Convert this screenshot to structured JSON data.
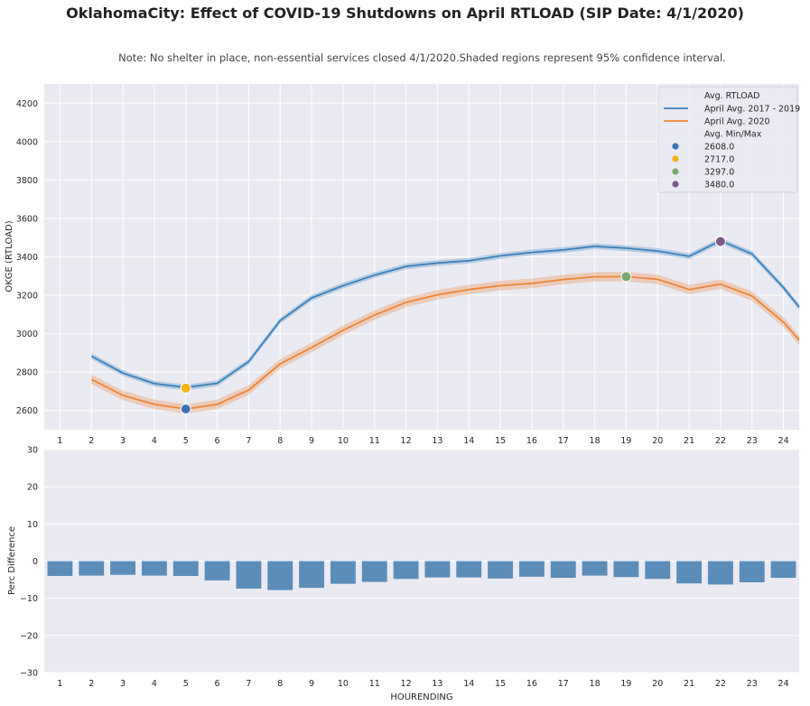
{
  "title": "OklahomaCity: Effect of COVID-19 Shutdowns on April RTLOAD (SIP Date: 4/1/2020)",
  "subtitle": "Note: No shelter in place, non-essential services closed 4/1/2020.Shaded regions represent 95% confidence interval.",
  "chart_data": [
    {
      "type": "line",
      "ylabel": "OKGE (RTLOAD)",
      "xlabel": "",
      "xlim": [
        0.5,
        24.5
      ],
      "ylim": [
        2500,
        4300
      ],
      "yticks": [
        2600,
        2800,
        3000,
        3200,
        3400,
        3600,
        3800,
        4000,
        4200
      ],
      "xticks": [
        1,
        2,
        3,
        4,
        5,
        6,
        7,
        8,
        9,
        10,
        11,
        12,
        13,
        14,
        15,
        16,
        17,
        18,
        19,
        20,
        21,
        22,
        23,
        24
      ],
      "series": [
        {
          "name": "April Avg. 2017 - 2019",
          "color": "#3b83bd",
          "x": [
            2,
            3,
            4,
            5,
            6,
            7,
            8,
            9,
            10,
            11,
            12,
            13,
            14,
            15,
            16,
            17,
            18,
            19,
            20,
            21,
            22,
            23,
            24,
            24.5
          ],
          "values": [
            2883,
            2795,
            2740,
            2720,
            2742,
            2855,
            3068,
            3186,
            3250,
            3305,
            3350,
            3368,
            3380,
            3405,
            3423,
            3436,
            3455,
            3445,
            3430,
            3403,
            3484,
            3415,
            3240,
            3138
          ],
          "ci": 15
        },
        {
          "name": "April Avg. 2020",
          "color": "#ee8536",
          "x": [
            2,
            3,
            4,
            5,
            6,
            7,
            8,
            9,
            10,
            11,
            12,
            13,
            14,
            15,
            16,
            17,
            18,
            19,
            20,
            21,
            22,
            23,
            24,
            24.5
          ],
          "values": [
            2762,
            2679,
            2632,
            2608,
            2632,
            2707,
            2843,
            2928,
            3018,
            3097,
            3163,
            3202,
            3230,
            3250,
            3262,
            3282,
            3296,
            3297,
            3283,
            3230,
            3258,
            3196,
            3060,
            2967
          ],
          "ci": 25
        }
      ],
      "markers": [
        {
          "label": "2608.0",
          "x": 5,
          "y": 2608,
          "color": "#3f74b3"
        },
        {
          "label": "2717.0",
          "x": 5,
          "y": 2717,
          "color": "#f2b118"
        },
        {
          "label": "3297.0",
          "x": 19,
          "y": 3297,
          "color": "#78a86f"
        },
        {
          "label": "3480.0",
          "x": 22,
          "y": 3480,
          "color": "#7d5a87"
        }
      ],
      "legend": {
        "position": "top-right",
        "header1": "Avg. RTLOAD",
        "header2": "Avg. Min/Max"
      }
    },
    {
      "type": "bar",
      "xlabel": "HOURENDING",
      "ylabel": "Perc Difference",
      "ylim": [
        -30,
        30
      ],
      "yticks": [
        -30,
        -20,
        -10,
        0,
        10,
        20,
        30
      ],
      "color": "#5b8db8",
      "categories": [
        1,
        2,
        3,
        4,
        5,
        6,
        7,
        8,
        9,
        10,
        11,
        12,
        13,
        14,
        15,
        16,
        17,
        18,
        19,
        20,
        21,
        22,
        23,
        24
      ],
      "values": [
        -4.0,
        -3.9,
        -3.7,
        -3.9,
        -4.0,
        -5.2,
        -7.4,
        -7.8,
        -7.2,
        -6.1,
        -5.6,
        -4.8,
        -4.4,
        -4.4,
        -4.7,
        -4.2,
        -4.5,
        -3.9,
        -4.3,
        -4.8,
        -6.0,
        -6.3,
        -5.7,
        -4.5
      ]
    }
  ]
}
